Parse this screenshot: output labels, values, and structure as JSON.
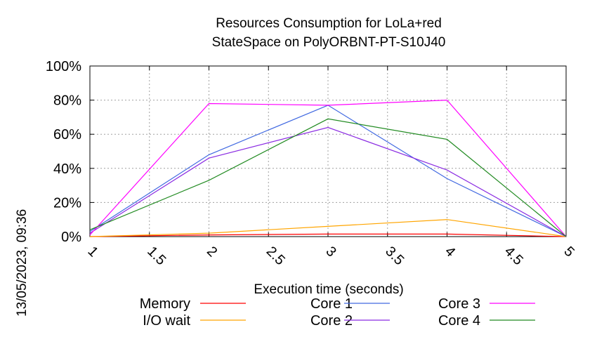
{
  "chart_data": {
    "type": "line",
    "title": "Resources Consumption for LoLa+red",
    "subtitle": "StateSpace on PolyORBNT-PT-S10J40",
    "xlabel": "Execution time (seconds)",
    "ylabel": "",
    "timestamp": "13/05/2023, 09:36",
    "xlim": [
      1,
      5
    ],
    "ylim": [
      0,
      100
    ],
    "x_ticks": [
      1,
      1.5,
      2,
      2.5,
      3,
      3.5,
      4,
      4.5,
      5
    ],
    "x_tick_labels": [
      "1",
      "1.5",
      "2",
      "2.5",
      "3",
      "3.5",
      "4",
      "4.5",
      "5"
    ],
    "y_ticks": [
      0,
      20,
      40,
      60,
      80,
      100
    ],
    "y_tick_labels": [
      "0%",
      "20%",
      "40%",
      "60%",
      "80%",
      "100%"
    ],
    "grid": true,
    "legend_position": "bottom",
    "series": [
      {
        "name": "Memory",
        "color": "#ff0000",
        "x": [
          1,
          2,
          3,
          4,
          5
        ],
        "values": [
          0,
          1,
          1.5,
          1.5,
          0
        ]
      },
      {
        "name": "I/O wait",
        "color": "#ffa500",
        "x": [
          1,
          2,
          3,
          4,
          5
        ],
        "values": [
          0,
          2,
          6,
          10,
          0
        ]
      },
      {
        "name": "Core 1",
        "color": "#4169e1",
        "x": [
          1,
          2,
          3,
          4,
          5
        ],
        "values": [
          3,
          48,
          77,
          34,
          0
        ]
      },
      {
        "name": "Core 2",
        "color": "#8a2be2",
        "x": [
          1,
          2,
          3,
          4,
          5
        ],
        "values": [
          2,
          46,
          64,
          39,
          0
        ]
      },
      {
        "name": "Core 3",
        "color": "#ff00ff",
        "x": [
          1,
          2,
          3,
          4,
          5
        ],
        "values": [
          1,
          78,
          77,
          80,
          0
        ]
      },
      {
        "name": "Core 4",
        "color": "#228b22",
        "x": [
          1,
          2,
          3,
          4,
          5
        ],
        "values": [
          4,
          33,
          69,
          57,
          0
        ]
      }
    ]
  }
}
